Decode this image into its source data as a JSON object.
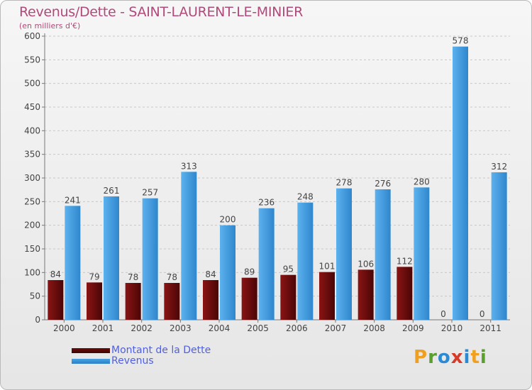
{
  "header": {
    "title": "Revenus/Dette - SAINT-LAURENT-LE-MINIER",
    "subtitle": "(en milliers d'€)"
  },
  "legend": [
    {
      "name": "Montant de la Dette",
      "color": "#6b0a0a"
    },
    {
      "name": "Revenus",
      "color": "#4aa3e6"
    }
  ],
  "logo": {
    "letters": [
      "P",
      "r",
      "o",
      "x",
      "i",
      "t",
      "i"
    ],
    "colors": [
      "#f0a020",
      "#5aa02c",
      "#2a8ad4",
      "#d83a2a",
      "#2a8ad4",
      "#f0a020",
      "#5aa02c"
    ]
  },
  "chart_data": {
    "type": "bar",
    "categories": [
      "2000",
      "2001",
      "2002",
      "2003",
      "2004",
      "2005",
      "2006",
      "2007",
      "2008",
      "2009",
      "2010",
      "2011"
    ],
    "series": [
      {
        "name": "Montant de la Dette",
        "color": "#6b0a0a",
        "values": [
          84,
          79,
          78,
          78,
          84,
          89,
          95,
          101,
          106,
          112,
          0,
          0
        ]
      },
      {
        "name": "Revenus",
        "color": "#4aa3e6",
        "values": [
          241,
          261,
          257,
          313,
          200,
          236,
          248,
          278,
          276,
          280,
          578,
          312
        ]
      }
    ],
    "yticks": [
      0,
      50,
      100,
      150,
      200,
      250,
      300,
      350,
      400,
      450,
      500,
      550,
      600
    ],
    "ylim": [
      0,
      600
    ],
    "grid": true
  }
}
